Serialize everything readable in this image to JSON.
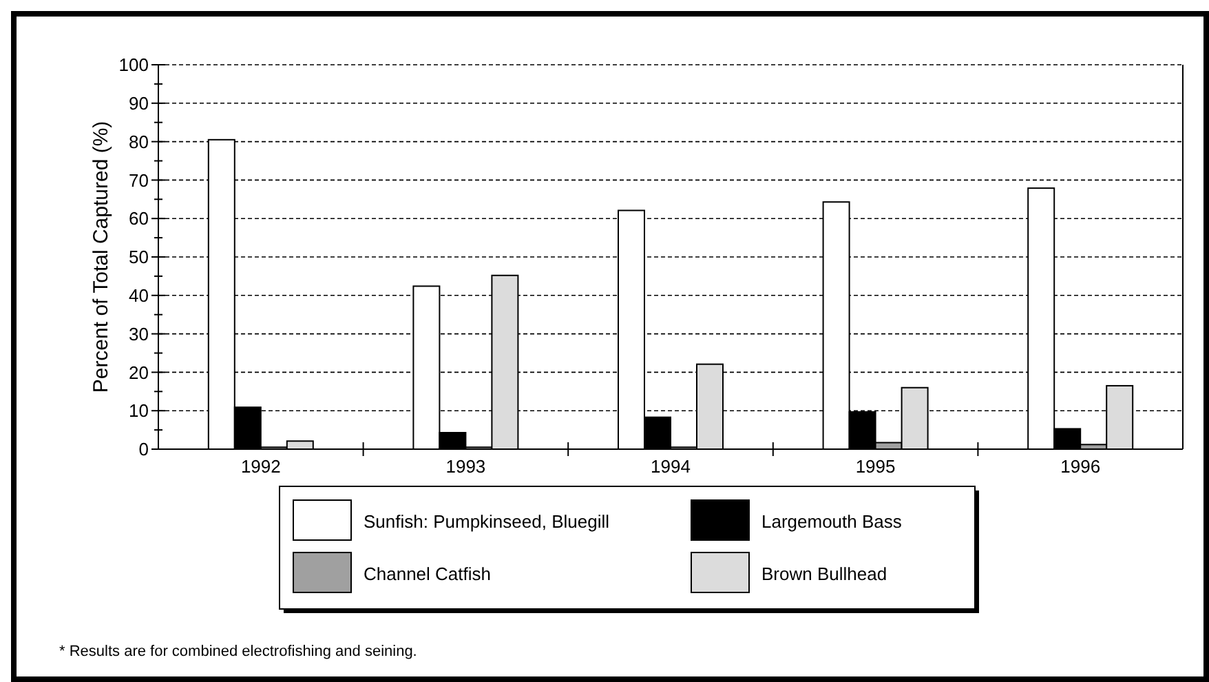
{
  "chart_data": {
    "type": "bar",
    "categories": [
      "1992",
      "1993",
      "1994",
      "1995",
      "1996"
    ],
    "ylabel": "Percent of Total Captured (%)",
    "series": [
      {
        "name": "Sunfish: Pumpkinseed, Bluegill",
        "color": "#ffffff",
        "values": [
          80.5,
          42.4,
          62.1,
          64.3,
          67.9
        ]
      },
      {
        "name": "Largemouth Bass",
        "color": "#000000",
        "values": [
          10.9,
          4.3,
          8.3,
          9.7,
          5.3
        ]
      },
      {
        "name": "Channel Catfish",
        "color": "#a0a0a0",
        "values": [
          0.5,
          0.5,
          0.5,
          1.7,
          1.2
        ]
      },
      {
        "name": "Brown Bullhead",
        "color": "#dcdcdc",
        "values": [
          2.1,
          45.2,
          22.1,
          16.0,
          16.5
        ]
      }
    ],
    "ylim": [
      0,
      100
    ],
    "yticks": [
      0,
      10,
      20,
      30,
      40,
      50,
      60,
      70,
      80,
      90,
      100
    ],
    "grid": "y",
    "legend": "bottom",
    "annotations": [
      "* Results are for combined electrofishing and seining."
    ]
  }
}
